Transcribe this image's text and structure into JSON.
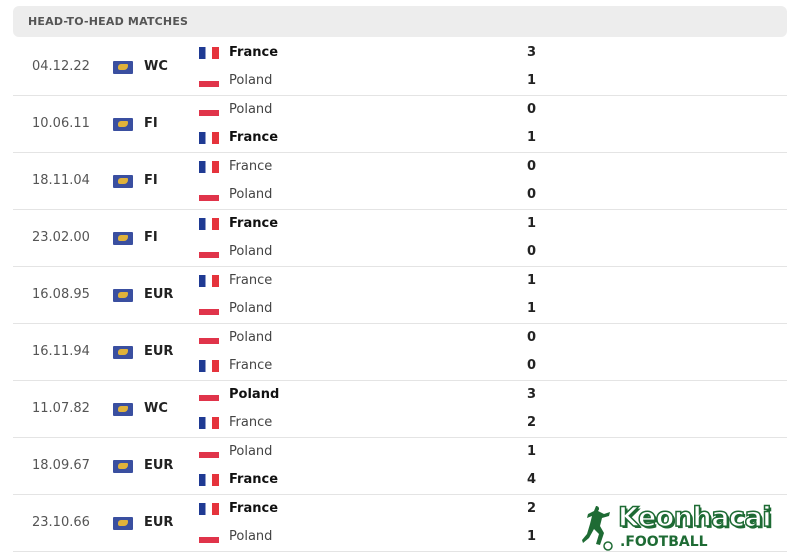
{
  "header": {
    "title": "HEAD-TO-HEAD MATCHES"
  },
  "matches": [
    {
      "date": "04.12.22",
      "competition": "WC",
      "teams": [
        {
          "name": "France",
          "flag": "fr",
          "score": "3",
          "winner": true
        },
        {
          "name": "Poland",
          "flag": "pl",
          "score": "1",
          "winner": false
        }
      ]
    },
    {
      "date": "10.06.11",
      "competition": "FI",
      "teams": [
        {
          "name": "Poland",
          "flag": "pl",
          "score": "0",
          "winner": false
        },
        {
          "name": "France",
          "flag": "fr",
          "score": "1",
          "winner": true
        }
      ]
    },
    {
      "date": "18.11.04",
      "competition": "FI",
      "teams": [
        {
          "name": "France",
          "flag": "fr",
          "score": "0",
          "winner": false
        },
        {
          "name": "Poland",
          "flag": "pl",
          "score": "0",
          "winner": false
        }
      ]
    },
    {
      "date": "23.02.00",
      "competition": "FI",
      "teams": [
        {
          "name": "France",
          "flag": "fr",
          "score": "1",
          "winner": true
        },
        {
          "name": "Poland",
          "flag": "pl",
          "score": "0",
          "winner": false
        }
      ]
    },
    {
      "date": "16.08.95",
      "competition": "EUR",
      "teams": [
        {
          "name": "France",
          "flag": "fr",
          "score": "1",
          "winner": false
        },
        {
          "name": "Poland",
          "flag": "pl",
          "score": "1",
          "winner": false
        }
      ]
    },
    {
      "date": "16.11.94",
      "competition": "EUR",
      "teams": [
        {
          "name": "Poland",
          "flag": "pl",
          "score": "0",
          "winner": false
        },
        {
          "name": "France",
          "flag": "fr",
          "score": "0",
          "winner": false
        }
      ]
    },
    {
      "date": "11.07.82",
      "competition": "WC",
      "teams": [
        {
          "name": "Poland",
          "flag": "pl",
          "score": "3",
          "winner": true
        },
        {
          "name": "France",
          "flag": "fr",
          "score": "2",
          "winner": false
        }
      ]
    },
    {
      "date": "18.09.67",
      "competition": "EUR",
      "teams": [
        {
          "name": "Poland",
          "flag": "pl",
          "score": "1",
          "winner": false
        },
        {
          "name": "France",
          "flag": "fr",
          "score": "4",
          "winner": true
        }
      ]
    },
    {
      "date": "23.10.66",
      "competition": "EUR",
      "teams": [
        {
          "name": "France",
          "flag": "fr",
          "score": "2",
          "winner": true
        },
        {
          "name": "Poland",
          "flag": "pl",
          "score": "1",
          "winner": false
        }
      ]
    }
  ],
  "watermark": {
    "brand": "Keonhacai",
    "suffix": ".FOOTBALL",
    "color": "#1e6b34"
  }
}
